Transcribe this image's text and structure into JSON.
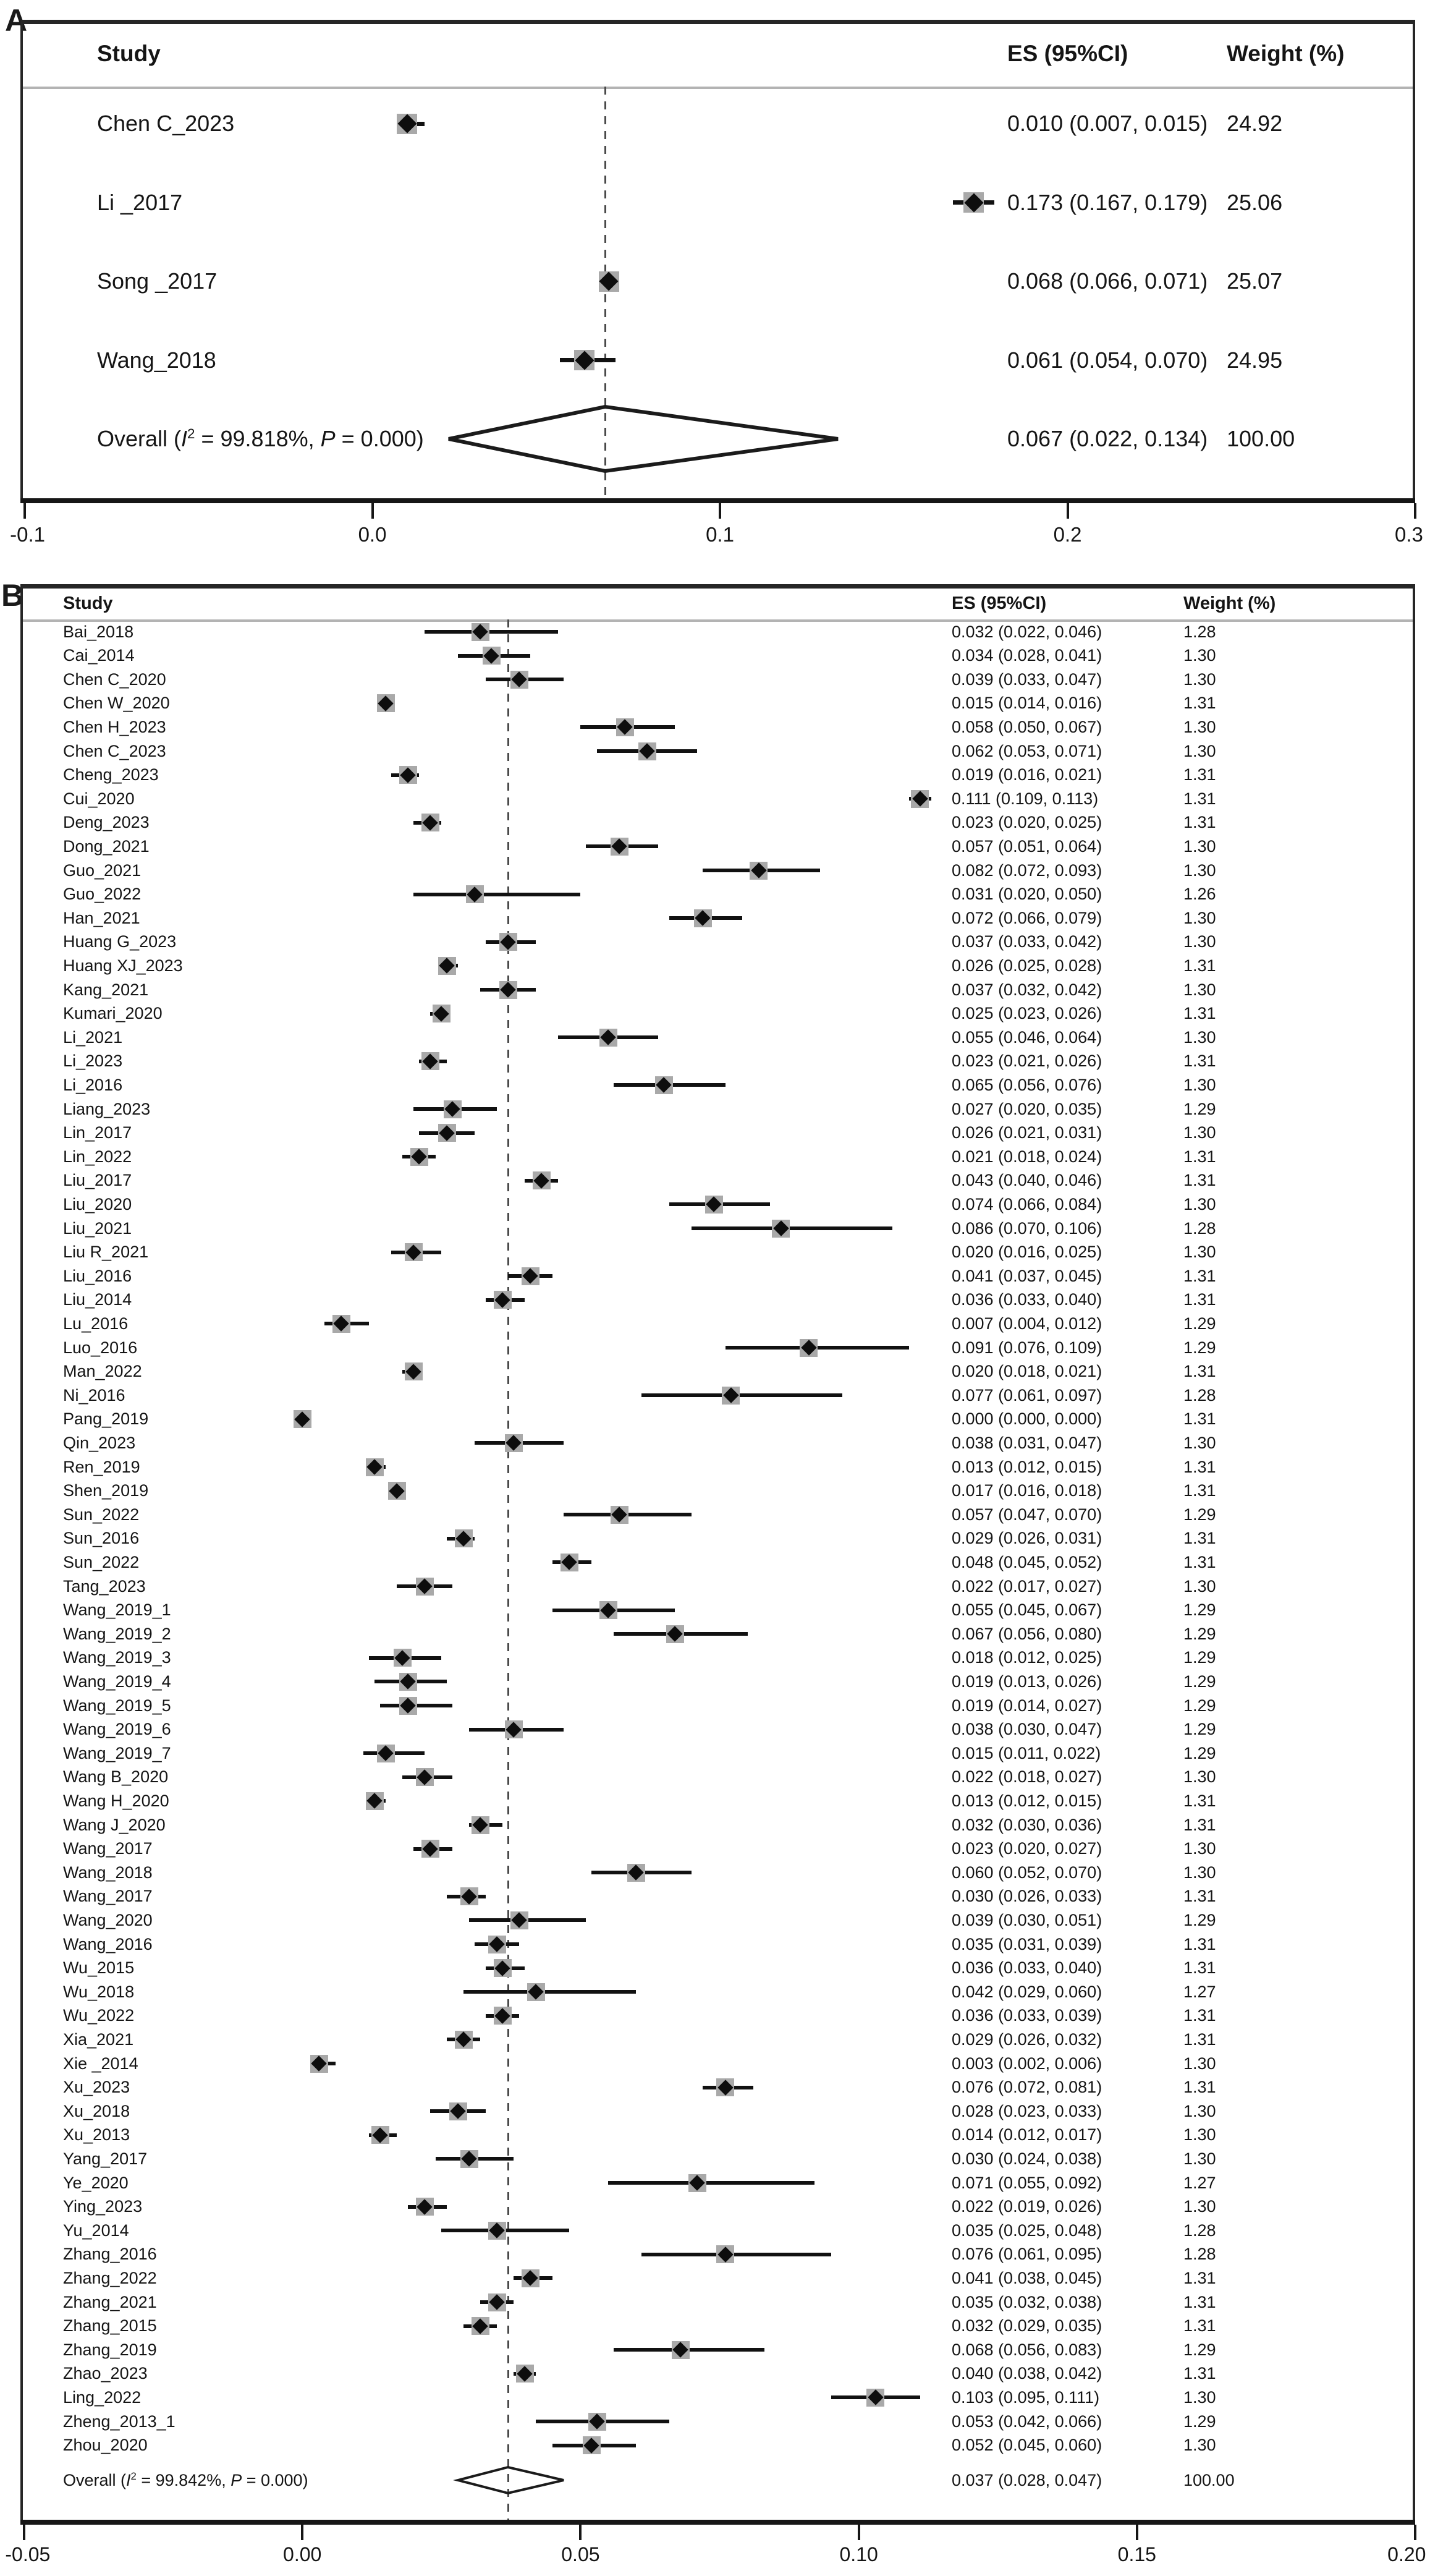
{
  "figure": {
    "panel_a_label": "A",
    "panel_b_label": "B"
  },
  "colors": {
    "background": "#ffffff",
    "text": "#151515",
    "axis": "#161616",
    "marker_diamond": "#0d0d0d",
    "marker_weight_box": "#a9a9a9",
    "dashed_line": "#4a4a4a",
    "header_separator": "#b3b3b3",
    "box_border": "#262626"
  },
  "chart_data": [
    {
      "panel": "A",
      "type": "forest",
      "headers": {
        "study": "Study",
        "es": "ES (95%CI)",
        "weight": "Weight (%)"
      },
      "xlim": [
        -0.1,
        0.3
      ],
      "xtick_values": [
        -0.1,
        0.0,
        0.1,
        0.2,
        0.3
      ],
      "xtick_labels": [
        "-0.1",
        "0.0",
        "0.1",
        "0.2",
        "0.3"
      ],
      "dashed_at": 0.067,
      "grid": false,
      "row_fields": [
        "label",
        "es",
        "lo",
        "hi",
        "es_text",
        "weight"
      ],
      "rows": [
        [
          "Chen C_2023",
          0.01,
          0.007,
          0.015,
          "0.010 (0.007, 0.015)",
          "24.92"
        ],
        [
          "Li _2017",
          0.173,
          0.167,
          0.179,
          "0.173 (0.167, 0.179)",
          "25.06"
        ],
        [
          "Song _2017",
          0.068,
          0.066,
          0.071,
          "0.068 (0.066, 0.071)",
          "25.07"
        ],
        [
          "Wang_2018",
          0.061,
          0.054,
          0.07,
          "0.061 (0.054, 0.070)",
          "24.95"
        ]
      ],
      "overall": {
        "prefix": "Overall (",
        "i_sym": "I",
        "i_sup": "2",
        "mid": " = 99.818%, ",
        "p_sym": "P",
        "end": " = 0.000)",
        "es": 0.067,
        "lo": 0.022,
        "hi": 0.134,
        "es_text": "0.067 (0.022, 0.134)",
        "weight": "100.00"
      }
    },
    {
      "panel": "B",
      "type": "forest",
      "headers": {
        "study": "Study",
        "es": "ES (95%CI)",
        "weight": "Weight (%)"
      },
      "xlim": [
        -0.05,
        0.2
      ],
      "xtick_values": [
        -0.05,
        0.0,
        0.05,
        0.1,
        0.15,
        0.2
      ],
      "xtick_labels": [
        "-0.05",
        "0.00",
        "0.05",
        "0.10",
        "0.15",
        "0.20"
      ],
      "dashed_at": 0.037,
      "grid": false,
      "row_fields": [
        "label",
        "es",
        "lo",
        "hi",
        "es_text",
        "weight"
      ],
      "rows": [
        [
          "Bai_2018",
          0.032,
          0.022,
          0.046,
          "0.032 (0.022, 0.046)",
          "1.28"
        ],
        [
          "Cai_2014",
          0.034,
          0.028,
          0.041,
          "0.034 (0.028, 0.041)",
          "1.30"
        ],
        [
          "Chen C_2020",
          0.039,
          0.033,
          0.047,
          "0.039 (0.033, 0.047)",
          "1.30"
        ],
        [
          "Chen W_2020",
          0.015,
          0.014,
          0.016,
          "0.015 (0.014, 0.016)",
          "1.31"
        ],
        [
          "Chen H_2023",
          0.058,
          0.05,
          0.067,
          "0.058 (0.050, 0.067)",
          "1.30"
        ],
        [
          "Chen C_2023",
          0.062,
          0.053,
          0.071,
          "0.062 (0.053, 0.071)",
          "1.30"
        ],
        [
          "Cheng_2023",
          0.019,
          0.016,
          0.021,
          "0.019 (0.016, 0.021)",
          "1.31"
        ],
        [
          "Cui_2020",
          0.111,
          0.109,
          0.113,
          "0.111 (0.109, 0.113)",
          "1.31"
        ],
        [
          "Deng_2023",
          0.023,
          0.02,
          0.025,
          "0.023 (0.020, 0.025)",
          "1.31"
        ],
        [
          "Dong_2021",
          0.057,
          0.051,
          0.064,
          "0.057 (0.051, 0.064)",
          "1.30"
        ],
        [
          "Guo_2021",
          0.082,
          0.072,
          0.093,
          "0.082 (0.072, 0.093)",
          "1.30"
        ],
        [
          "Guo_2022",
          0.031,
          0.02,
          0.05,
          "0.031 (0.020, 0.050)",
          "1.26"
        ],
        [
          "Han_2021",
          0.072,
          0.066,
          0.079,
          "0.072 (0.066, 0.079)",
          "1.30"
        ],
        [
          "Huang G_2023",
          0.037,
          0.033,
          0.042,
          "0.037 (0.033, 0.042)",
          "1.30"
        ],
        [
          "Huang XJ_2023",
          0.026,
          0.025,
          0.028,
          "0.026 (0.025, 0.028)",
          "1.31"
        ],
        [
          "Kang_2021",
          0.037,
          0.032,
          0.042,
          "0.037 (0.032, 0.042)",
          "1.30"
        ],
        [
          "Kumari_2020",
          0.025,
          0.023,
          0.026,
          "0.025 (0.023, 0.026)",
          "1.31"
        ],
        [
          "Li_2021",
          0.055,
          0.046,
          0.064,
          "0.055 (0.046, 0.064)",
          "1.30"
        ],
        [
          "Li_2023",
          0.023,
          0.021,
          0.026,
          "0.023 (0.021, 0.026)",
          "1.31"
        ],
        [
          "Li_2016",
          0.065,
          0.056,
          0.076,
          "0.065 (0.056, 0.076)",
          "1.30"
        ],
        [
          "Liang_2023",
          0.027,
          0.02,
          0.035,
          "0.027 (0.020, 0.035)",
          "1.29"
        ],
        [
          "Lin_2017",
          0.026,
          0.021,
          0.031,
          "0.026 (0.021, 0.031)",
          "1.30"
        ],
        [
          "Lin_2022",
          0.021,
          0.018,
          0.024,
          "0.021 (0.018, 0.024)",
          "1.31"
        ],
        [
          "Liu_2017",
          0.043,
          0.04,
          0.046,
          "0.043 (0.040, 0.046)",
          "1.31"
        ],
        [
          "Liu_2020",
          0.074,
          0.066,
          0.084,
          "0.074 (0.066, 0.084)",
          "1.30"
        ],
        [
          "Liu_2021",
          0.086,
          0.07,
          0.106,
          "0.086 (0.070, 0.106)",
          "1.28"
        ],
        [
          "Liu R_2021",
          0.02,
          0.016,
          0.025,
          "0.020 (0.016, 0.025)",
          "1.30"
        ],
        [
          "Liu_2016",
          0.041,
          0.037,
          0.045,
          "0.041 (0.037, 0.045)",
          "1.31"
        ],
        [
          "Liu_2014",
          0.036,
          0.033,
          0.04,
          "0.036 (0.033, 0.040)",
          "1.31"
        ],
        [
          "Lu_2016",
          0.007,
          0.004,
          0.012,
          "0.007 (0.004, 0.012)",
          "1.29"
        ],
        [
          "Luo_2016",
          0.091,
          0.076,
          0.109,
          "0.091 (0.076, 0.109)",
          "1.29"
        ],
        [
          "Man_2022",
          0.02,
          0.018,
          0.021,
          "0.020 (0.018, 0.021)",
          "1.31"
        ],
        [
          "Ni_2016",
          0.077,
          0.061,
          0.097,
          "0.077 (0.061, 0.097)",
          "1.28"
        ],
        [
          "Pang_2019",
          0.0,
          0.0,
          0.0,
          "0.000 (0.000, 0.000)",
          "1.31"
        ],
        [
          "Qin_2023",
          0.038,
          0.031,
          0.047,
          "0.038 (0.031, 0.047)",
          "1.30"
        ],
        [
          "Ren_2019",
          0.013,
          0.012,
          0.015,
          "0.013 (0.012, 0.015)",
          "1.31"
        ],
        [
          "Shen_2019",
          0.017,
          0.016,
          0.018,
          "0.017 (0.016, 0.018)",
          "1.31"
        ],
        [
          "Sun_2022",
          0.057,
          0.047,
          0.07,
          "0.057 (0.047, 0.070)",
          "1.29"
        ],
        [
          "Sun_2016",
          0.029,
          0.026,
          0.031,
          "0.029 (0.026, 0.031)",
          "1.31"
        ],
        [
          "Sun_2022",
          0.048,
          0.045,
          0.052,
          "0.048 (0.045, 0.052)",
          "1.31"
        ],
        [
          "Tang_2023",
          0.022,
          0.017,
          0.027,
          "0.022 (0.017, 0.027)",
          "1.30"
        ],
        [
          "Wang_2019_1",
          0.055,
          0.045,
          0.067,
          "0.055 (0.045, 0.067)",
          "1.29"
        ],
        [
          "Wang_2019_2",
          0.067,
          0.056,
          0.08,
          "0.067 (0.056, 0.080)",
          "1.29"
        ],
        [
          "Wang_2019_3",
          0.018,
          0.012,
          0.025,
          "0.018 (0.012, 0.025)",
          "1.29"
        ],
        [
          "Wang_2019_4",
          0.019,
          0.013,
          0.026,
          "0.019 (0.013, 0.026)",
          "1.29"
        ],
        [
          "Wang_2019_5",
          0.019,
          0.014,
          0.027,
          "0.019 (0.014, 0.027)",
          "1.29"
        ],
        [
          "Wang_2019_6",
          0.038,
          0.03,
          0.047,
          "0.038 (0.030, 0.047)",
          "1.29"
        ],
        [
          "Wang_2019_7",
          0.015,
          0.011,
          0.022,
          "0.015 (0.011, 0.022)",
          "1.29"
        ],
        [
          "Wang B_2020",
          0.022,
          0.018,
          0.027,
          "0.022 (0.018, 0.027)",
          "1.30"
        ],
        [
          "Wang H_2020",
          0.013,
          0.012,
          0.015,
          "0.013 (0.012, 0.015)",
          "1.31"
        ],
        [
          "Wang J_2020",
          0.032,
          0.03,
          0.036,
          "0.032 (0.030, 0.036)",
          "1.31"
        ],
        [
          "Wang_2017",
          0.023,
          0.02,
          0.027,
          "0.023 (0.020, 0.027)",
          "1.30"
        ],
        [
          "Wang_2018",
          0.06,
          0.052,
          0.07,
          "0.060 (0.052, 0.070)",
          "1.30"
        ],
        [
          "Wang_2017",
          0.03,
          0.026,
          0.033,
          "0.030 (0.026, 0.033)",
          "1.31"
        ],
        [
          "Wang_2020",
          0.039,
          0.03,
          0.051,
          "0.039 (0.030, 0.051)",
          "1.29"
        ],
        [
          "Wang_2016",
          0.035,
          0.031,
          0.039,
          "0.035 (0.031, 0.039)",
          "1.31"
        ],
        [
          "Wu_2015",
          0.036,
          0.033,
          0.04,
          "0.036 (0.033, 0.040)",
          "1.31"
        ],
        [
          "Wu_2018",
          0.042,
          0.029,
          0.06,
          "0.042 (0.029, 0.060)",
          "1.27"
        ],
        [
          "Wu_2022",
          0.036,
          0.033,
          0.039,
          "0.036 (0.033, 0.039)",
          "1.31"
        ],
        [
          "Xia_2021",
          0.029,
          0.026,
          0.032,
          "0.029 (0.026, 0.032)",
          "1.31"
        ],
        [
          "Xie _2014",
          0.003,
          0.002,
          0.006,
          "0.003 (0.002, 0.006)",
          "1.30"
        ],
        [
          "Xu_2023",
          0.076,
          0.072,
          0.081,
          "0.076 (0.072, 0.081)",
          "1.31"
        ],
        [
          "Xu_2018",
          0.028,
          0.023,
          0.033,
          "0.028 (0.023, 0.033)",
          "1.30"
        ],
        [
          "Xu_2013",
          0.014,
          0.012,
          0.017,
          "0.014 (0.012, 0.017)",
          "1.30"
        ],
        [
          "Yang_2017",
          0.03,
          0.024,
          0.038,
          "0.030 (0.024, 0.038)",
          "1.30"
        ],
        [
          "Ye_2020",
          0.071,
          0.055,
          0.092,
          "0.071 (0.055, 0.092)",
          "1.27"
        ],
        [
          "Ying_2023",
          0.022,
          0.019,
          0.026,
          "0.022 (0.019, 0.026)",
          "1.30"
        ],
        [
          "Yu_2014",
          0.035,
          0.025,
          0.048,
          "0.035 (0.025, 0.048)",
          "1.28"
        ],
        [
          "Zhang_2016",
          0.076,
          0.061,
          0.095,
          "0.076 (0.061, 0.095)",
          "1.28"
        ],
        [
          "Zhang_2022",
          0.041,
          0.038,
          0.045,
          "0.041 (0.038, 0.045)",
          "1.31"
        ],
        [
          "Zhang_2021",
          0.035,
          0.032,
          0.038,
          "0.035 (0.032, 0.038)",
          "1.31"
        ],
        [
          "Zhang_2015",
          0.032,
          0.029,
          0.035,
          "0.032 (0.029, 0.035)",
          "1.31"
        ],
        [
          "Zhang_2019",
          0.068,
          0.056,
          0.083,
          "0.068 (0.056, 0.083)",
          "1.29"
        ],
        [
          "Zhao_2023",
          0.04,
          0.038,
          0.042,
          "0.040 (0.038, 0.042)",
          "1.31"
        ],
        [
          "Ling_2022",
          0.103,
          0.095,
          0.111,
          "0.103 (0.095, 0.111)",
          "1.30"
        ],
        [
          "Zheng_2013_1",
          0.053,
          0.042,
          0.066,
          "0.053 (0.042, 0.066)",
          "1.29"
        ],
        [
          "Zhou_2020",
          0.052,
          0.045,
          0.06,
          "0.052 (0.045, 0.060)",
          "1.30"
        ]
      ],
      "overall": {
        "prefix": "Overall (",
        "i_sym": "I",
        "i_sup": "2",
        "mid": " = 99.842%, ",
        "p_sym": "P",
        "end": " = 0.000)",
        "es": 0.037,
        "lo": 0.028,
        "hi": 0.047,
        "es_text": "0.037 (0.028, 0.047)",
        "weight": "100.00"
      }
    }
  ]
}
